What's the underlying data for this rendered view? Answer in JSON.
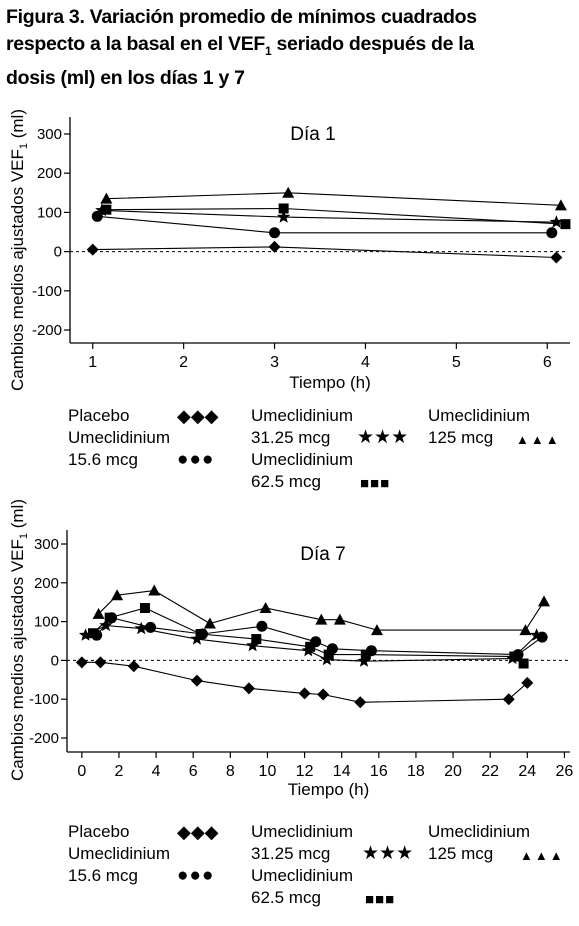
{
  "figure": {
    "title_line1": "Figura 3. Variación promedio de mínimos cuadrados",
    "title_line2a": "respecto a la basal en el VEF",
    "title_line2_sub": "1",
    "title_line2b": " seriado después de la",
    "title_line3": "dosis (ml) en los días 1 y 7"
  },
  "legend": {
    "placebo": "Placebo",
    "umec_label": "Umeclidinium",
    "dose_15_6": "15.6 mcg",
    "dose_31_25": "31.25 mcg",
    "dose_62_5": "62.5 mcg",
    "dose_125": "125 mcg",
    "glyph_diamond": "◆◆◆",
    "glyph_circle": "●●●",
    "glyph_star": "★★★",
    "glyph_square": "■■■",
    "glyph_triangle": "▲▲▲"
  },
  "chart_data": [
    {
      "type": "line",
      "title": "Día 1",
      "xlabel": "Tiempo (h)",
      "ylabel": "Cambios medios ajustados VEF",
      "ylabel_sub": "1",
      "ylabel_unit": " (ml)",
      "xlim": [
        0.75,
        6.25
      ],
      "ylim": [
        -200,
        300
      ],
      "xticks": [
        1,
        2,
        3,
        4,
        5,
        6
      ],
      "yticks": [
        300,
        200,
        100,
        0,
        -100,
        -200
      ],
      "reference_line": 0,
      "series": [
        {
          "name": "Placebo",
          "marker": "diamond",
          "x": [
            1,
            3,
            6.1
          ],
          "y": [
            5,
            12,
            -15
          ]
        },
        {
          "name": "Umeclidinium 15.6 mcg",
          "marker": "circle",
          "x": [
            1.05,
            3,
            6.05
          ],
          "y": [
            90,
            48,
            48
          ]
        },
        {
          "name": "Umeclidinium 31.25 mcg",
          "marker": "star",
          "x": [
            1.1,
            3.1,
            6.1
          ],
          "y": [
            105,
            88,
            75
          ]
        },
        {
          "name": "Umeclidinium 62.5 mcg",
          "marker": "square",
          "x": [
            1.15,
            3.1,
            6.2
          ],
          "y": [
            107,
            110,
            70
          ]
        },
        {
          "name": "Umeclidinium 125 mcg",
          "marker": "triangle",
          "x": [
            1.15,
            3.15,
            6.15
          ],
          "y": [
            135,
            150,
            118
          ]
        }
      ]
    },
    {
      "type": "line",
      "title": "Día 7",
      "xlabel": "Tiempo (h)",
      "ylabel": "Cambios medios ajustados VEF",
      "ylabel_sub": "1",
      "ylabel_unit": " (ml)",
      "xlim": [
        -0.8,
        26.3
      ],
      "ylim": [
        -200,
        300
      ],
      "xticks": [
        0,
        2,
        4,
        6,
        8,
        10,
        12,
        14,
        16,
        18,
        20,
        22,
        24,
        26
      ],
      "yticks": [
        300,
        200,
        100,
        0,
        -100,
        -200
      ],
      "reference_line": 0,
      "series": [
        {
          "name": "Placebo",
          "marker": "diamond",
          "x": [
            0,
            1,
            2.8,
            6.2,
            9,
            12,
            13,
            15,
            23,
            24
          ],
          "y": [
            -5,
            -5,
            -15,
            -52,
            -72,
            -85,
            -88,
            -108,
            -100,
            -58
          ]
        },
        {
          "name": "Umeclidinium 15.6 mcg",
          "marker": "circle",
          "x": [
            0.8,
            1.6,
            3.7,
            6.5,
            9.7,
            12.6,
            13.5,
            15.6,
            23.5,
            24.8
          ],
          "y": [
            65,
            110,
            85,
            68,
            88,
            48,
            30,
            25,
            15,
            60
          ]
        },
        {
          "name": "Umeclidinium 31.25 mcg",
          "marker": "star",
          "x": [
            0.2,
            1.3,
            3.2,
            6.2,
            9.2,
            12.2,
            13.2,
            15.2,
            23.2,
            24.5
          ],
          "y": [
            65,
            90,
            82,
            55,
            38,
            25,
            2,
            -2,
            5,
            65
          ]
        },
        {
          "name": "Umeclidinium 62.5 mcg",
          "marker": "square",
          "x": [
            0.6,
            1.5,
            3.4,
            6.4,
            9.4,
            12.3,
            13.3,
            15.3,
            23.3,
            23.8
          ],
          "y": [
            70,
            110,
            135,
            68,
            55,
            35,
            15,
            15,
            10,
            -8
          ]
        },
        {
          "name": "Umeclidinium 125 mcg",
          "marker": "triangle",
          "x": [
            0.9,
            1.9,
            3.9,
            6.9,
            9.9,
            12.9,
            13.9,
            15.9,
            23.9,
            24.9
          ],
          "y": [
            120,
            168,
            180,
            95,
            135,
            105,
            105,
            78,
            78,
            152
          ]
        }
      ]
    }
  ]
}
